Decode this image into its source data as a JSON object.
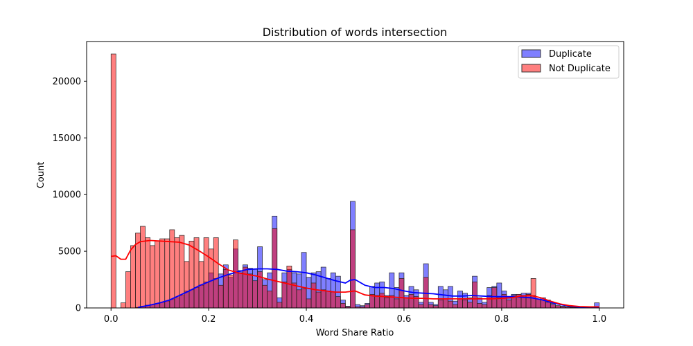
{
  "chart_data": {
    "type": "bar",
    "title": "Distribution of words intersection",
    "xlabel": "Word Share Ratio",
    "ylabel": "Count",
    "xlim": [
      -0.05,
      1.05
    ],
    "ylim": [
      0,
      23500
    ],
    "x_ticks": [
      0.0,
      0.2,
      0.4,
      0.6,
      0.8,
      1.0
    ],
    "x_tick_labels": [
      "0.0",
      "0.2",
      "0.4",
      "0.6",
      "0.8",
      "1.0"
    ],
    "y_ticks": [
      0,
      5000,
      10000,
      15000,
      20000
    ],
    "y_tick_labels": [
      "0",
      "5000",
      "10000",
      "15000",
      "20000"
    ],
    "legend_position": "top-right",
    "bin_width": 0.01,
    "series": [
      {
        "name": "Duplicate",
        "color": "#0000ff",
        "bins": [
          [
            0.05,
            50
          ],
          [
            0.06,
            150
          ],
          [
            0.07,
            250
          ],
          [
            0.08,
            300
          ],
          [
            0.09,
            380
          ],
          [
            0.1,
            500
          ],
          [
            0.11,
            600
          ],
          [
            0.12,
            750
          ],
          [
            0.13,
            900
          ],
          [
            0.14,
            1100
          ],
          [
            0.15,
            1500
          ],
          [
            0.16,
            1600
          ],
          [
            0.17,
            1800
          ],
          [
            0.18,
            2000
          ],
          [
            0.19,
            2300
          ],
          [
            0.2,
            3100
          ],
          [
            0.21,
            2600
          ],
          [
            0.22,
            3000
          ],
          [
            0.23,
            3800
          ],
          [
            0.24,
            2700
          ],
          [
            0.25,
            5200
          ],
          [
            0.26,
            3300
          ],
          [
            0.27,
            3800
          ],
          [
            0.28,
            3500
          ],
          [
            0.29,
            3400
          ],
          [
            0.3,
            5400
          ],
          [
            0.31,
            2500
          ],
          [
            0.32,
            3100
          ],
          [
            0.33,
            8100
          ],
          [
            0.34,
            900
          ],
          [
            0.35,
            3100
          ],
          [
            0.36,
            3400
          ],
          [
            0.37,
            3100
          ],
          [
            0.38,
            3000
          ],
          [
            0.39,
            4900
          ],
          [
            0.4,
            2700
          ],
          [
            0.41,
            3100
          ],
          [
            0.42,
            3200
          ],
          [
            0.43,
            3600
          ],
          [
            0.44,
            2600
          ],
          [
            0.45,
            3100
          ],
          [
            0.46,
            2800
          ],
          [
            0.47,
            700
          ],
          [
            0.48,
            150
          ],
          [
            0.49,
            9400
          ],
          [
            0.5,
            300
          ],
          [
            0.51,
            200
          ],
          [
            0.52,
            400
          ],
          [
            0.53,
            1900
          ],
          [
            0.54,
            2200
          ],
          [
            0.55,
            2300
          ],
          [
            0.56,
            1100
          ],
          [
            0.57,
            3100
          ],
          [
            0.58,
            1800
          ],
          [
            0.59,
            3100
          ],
          [
            0.6,
            1100
          ],
          [
            0.61,
            1900
          ],
          [
            0.62,
            1600
          ],
          [
            0.63,
            500
          ],
          [
            0.64,
            3900
          ],
          [
            0.65,
            500
          ],
          [
            0.66,
            300
          ],
          [
            0.67,
            1900
          ],
          [
            0.68,
            1600
          ],
          [
            0.69,
            1900
          ],
          [
            0.7,
            600
          ],
          [
            0.71,
            1500
          ],
          [
            0.72,
            1300
          ],
          [
            0.73,
            900
          ],
          [
            0.74,
            2800
          ],
          [
            0.75,
            900
          ],
          [
            0.76,
            500
          ],
          [
            0.77,
            1800
          ],
          [
            0.78,
            1900
          ],
          [
            0.79,
            2200
          ],
          [
            0.8,
            1500
          ],
          [
            0.81,
            1000
          ],
          [
            0.82,
            1200
          ],
          [
            0.83,
            1200
          ],
          [
            0.84,
            1300
          ],
          [
            0.85,
            1300
          ],
          [
            0.86,
            1100
          ],
          [
            0.87,
            800
          ],
          [
            0.88,
            900
          ],
          [
            0.89,
            700
          ],
          [
            0.9,
            400
          ],
          [
            0.91,
            200
          ],
          [
            0.92,
            150
          ],
          [
            0.93,
            100
          ],
          [
            0.94,
            80
          ],
          [
            0.95,
            60
          ],
          [
            0.96,
            50
          ],
          [
            0.97,
            40
          ],
          [
            0.98,
            30
          ],
          [
            0.99,
            450
          ]
        ],
        "kde": [
          [
            0.055,
            50
          ],
          [
            0.08,
            250
          ],
          [
            0.1,
            450
          ],
          [
            0.12,
            700
          ],
          [
            0.14,
            1100
          ],
          [
            0.16,
            1500
          ],
          [
            0.18,
            1950
          ],
          [
            0.2,
            2300
          ],
          [
            0.22,
            2650
          ],
          [
            0.24,
            2950
          ],
          [
            0.26,
            3200
          ],
          [
            0.28,
            3400
          ],
          [
            0.3,
            3450
          ],
          [
            0.32,
            3450
          ],
          [
            0.34,
            3400
          ],
          [
            0.36,
            3250
          ],
          [
            0.38,
            3200
          ],
          [
            0.4,
            3100
          ],
          [
            0.42,
            2900
          ],
          [
            0.44,
            2650
          ],
          [
            0.46,
            2400
          ],
          [
            0.48,
            2200
          ],
          [
            0.49,
            2450
          ],
          [
            0.5,
            2500
          ],
          [
            0.52,
            2000
          ],
          [
            0.54,
            1800
          ],
          [
            0.56,
            1800
          ],
          [
            0.58,
            1700
          ],
          [
            0.6,
            1500
          ],
          [
            0.62,
            1350
          ],
          [
            0.64,
            1300
          ],
          [
            0.66,
            1250
          ],
          [
            0.68,
            1150
          ],
          [
            0.7,
            1050
          ],
          [
            0.72,
            1050
          ],
          [
            0.74,
            1100
          ],
          [
            0.76,
            1050
          ],
          [
            0.78,
            1000
          ],
          [
            0.8,
            1000
          ],
          [
            0.82,
            1000
          ],
          [
            0.84,
            950
          ],
          [
            0.86,
            900
          ],
          [
            0.88,
            750
          ],
          [
            0.9,
            500
          ],
          [
            0.92,
            300
          ],
          [
            0.94,
            150
          ],
          [
            0.96,
            80
          ],
          [
            0.98,
            60
          ],
          [
            1.0,
            80
          ]
        ]
      },
      {
        "name": "Not Duplicate",
        "color": "#ff0000",
        "bins": [
          [
            0.0,
            22400
          ],
          [
            0.01,
            0
          ],
          [
            0.02,
            450
          ],
          [
            0.03,
            3200
          ],
          [
            0.04,
            5500
          ],
          [
            0.05,
            6600
          ],
          [
            0.06,
            7200
          ],
          [
            0.07,
            6200
          ],
          [
            0.08,
            5500
          ],
          [
            0.09,
            5900
          ],
          [
            0.1,
            6100
          ],
          [
            0.11,
            6100
          ],
          [
            0.12,
            6900
          ],
          [
            0.13,
            6200
          ],
          [
            0.14,
            6400
          ],
          [
            0.15,
            4100
          ],
          [
            0.16,
            5900
          ],
          [
            0.17,
            6200
          ],
          [
            0.18,
            4100
          ],
          [
            0.19,
            6200
          ],
          [
            0.2,
            5200
          ],
          [
            0.21,
            6200
          ],
          [
            0.22,
            2000
          ],
          [
            0.23,
            3400
          ],
          [
            0.24,
            2900
          ],
          [
            0.25,
            6000
          ],
          [
            0.26,
            3100
          ],
          [
            0.27,
            3600
          ],
          [
            0.28,
            3000
          ],
          [
            0.29,
            2400
          ],
          [
            0.3,
            3200
          ],
          [
            0.31,
            2000
          ],
          [
            0.32,
            1500
          ],
          [
            0.33,
            7000
          ],
          [
            0.34,
            500
          ],
          [
            0.35,
            2300
          ],
          [
            0.36,
            3700
          ],
          [
            0.37,
            2200
          ],
          [
            0.38,
            1600
          ],
          [
            0.39,
            1700
          ],
          [
            0.4,
            800
          ],
          [
            0.41,
            2200
          ],
          [
            0.42,
            1400
          ],
          [
            0.43,
            1600
          ],
          [
            0.44,
            1500
          ],
          [
            0.45,
            1400
          ],
          [
            0.46,
            1000
          ],
          [
            0.47,
            400
          ],
          [
            0.48,
            100
          ],
          [
            0.49,
            6900
          ],
          [
            0.5,
            100
          ],
          [
            0.51,
            100
          ],
          [
            0.52,
            300
          ],
          [
            0.53,
            1200
          ],
          [
            0.54,
            1100
          ],
          [
            0.55,
            1300
          ],
          [
            0.56,
            900
          ],
          [
            0.57,
            1100
          ],
          [
            0.58,
            800
          ],
          [
            0.59,
            2600
          ],
          [
            0.6,
            900
          ],
          [
            0.61,
            1200
          ],
          [
            0.62,
            1000
          ],
          [
            0.63,
            300
          ],
          [
            0.64,
            2700
          ],
          [
            0.65,
            300
          ],
          [
            0.66,
            200
          ],
          [
            0.67,
            700
          ],
          [
            0.68,
            800
          ],
          [
            0.69,
            600
          ],
          [
            0.7,
            300
          ],
          [
            0.71,
            800
          ],
          [
            0.72,
            700
          ],
          [
            0.73,
            500
          ],
          [
            0.74,
            2300
          ],
          [
            0.75,
            400
          ],
          [
            0.76,
            300
          ],
          [
            0.77,
            1100
          ],
          [
            0.78,
            1800
          ],
          [
            0.79,
            900
          ],
          [
            0.8,
            1200
          ],
          [
            0.81,
            700
          ],
          [
            0.82,
            1100
          ],
          [
            0.83,
            1200
          ],
          [
            0.84,
            1100
          ],
          [
            0.85,
            1200
          ],
          [
            0.86,
            2600
          ],
          [
            0.87,
            800
          ],
          [
            0.88,
            700
          ],
          [
            0.89,
            500
          ],
          [
            0.9,
            300
          ],
          [
            0.91,
            200
          ],
          [
            0.92,
            100
          ],
          [
            0.93,
            80
          ],
          [
            0.94,
            60
          ],
          [
            0.95,
            40
          ],
          [
            0.96,
            30
          ],
          [
            0.97,
            20
          ],
          [
            0.98,
            10
          ],
          [
            0.99,
            10
          ]
        ],
        "kde": [
          [
            0.0,
            4550
          ],
          [
            0.01,
            4600
          ],
          [
            0.02,
            4300
          ],
          [
            0.03,
            4300
          ],
          [
            0.04,
            5100
          ],
          [
            0.05,
            5600
          ],
          [
            0.06,
            5850
          ],
          [
            0.08,
            5950
          ],
          [
            0.1,
            5900
          ],
          [
            0.12,
            5850
          ],
          [
            0.14,
            5800
          ],
          [
            0.16,
            5550
          ],
          [
            0.18,
            5050
          ],
          [
            0.2,
            4500
          ],
          [
            0.22,
            3900
          ],
          [
            0.24,
            3350
          ],
          [
            0.26,
            3100
          ],
          [
            0.28,
            2950
          ],
          [
            0.3,
            2800
          ],
          [
            0.32,
            2550
          ],
          [
            0.34,
            2350
          ],
          [
            0.36,
            2150
          ],
          [
            0.38,
            1950
          ],
          [
            0.4,
            1750
          ],
          [
            0.42,
            1600
          ],
          [
            0.44,
            1500
          ],
          [
            0.46,
            1400
          ],
          [
            0.48,
            1400
          ],
          [
            0.5,
            1500
          ],
          [
            0.52,
            1150
          ],
          [
            0.54,
            1050
          ],
          [
            0.56,
            1000
          ],
          [
            0.58,
            950
          ],
          [
            0.6,
            900
          ],
          [
            0.62,
            850
          ],
          [
            0.64,
            850
          ],
          [
            0.66,
            800
          ],
          [
            0.68,
            800
          ],
          [
            0.7,
            800
          ],
          [
            0.72,
            800
          ],
          [
            0.74,
            800
          ],
          [
            0.76,
            800
          ],
          [
            0.78,
            800
          ],
          [
            0.8,
            850
          ],
          [
            0.82,
            900
          ],
          [
            0.84,
            1050
          ],
          [
            0.86,
            1100
          ],
          [
            0.88,
            900
          ],
          [
            0.9,
            600
          ],
          [
            0.92,
            350
          ],
          [
            0.94,
            200
          ],
          [
            0.96,
            120
          ],
          [
            0.98,
            100
          ],
          [
            1.0,
            100
          ]
        ]
      }
    ]
  }
}
